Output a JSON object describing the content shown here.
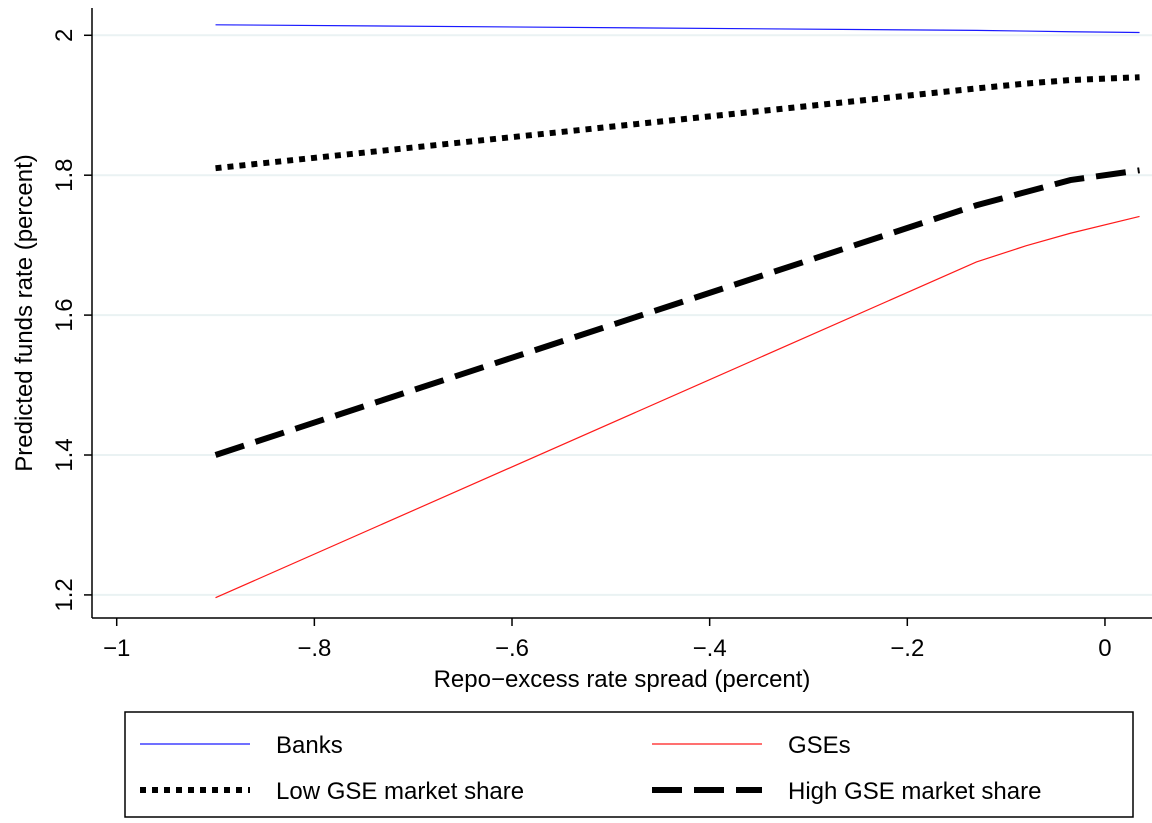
{
  "chart_data": {
    "type": "line",
    "xlabel": "Repo−excess rate spread (percent)",
    "ylabel": "Predicted funds rate (percent)",
    "x": [
      -0.9,
      -0.13,
      -0.08,
      -0.035,
      0.035
    ],
    "series": [
      {
        "name": "Banks",
        "color": "#1a1aff",
        "linestyle": "solid",
        "values": [
          2.015,
          2.007,
          2.006,
          2.005,
          2.004
        ]
      },
      {
        "name": "GSEs",
        "color": "#ff1a1a",
        "linestyle": "solid",
        "values": [
          1.196,
          1.676,
          1.699,
          1.717,
          1.741
        ]
      },
      {
        "name": "Low GSE market share",
        "color": "#000000",
        "linestyle": "dotted",
        "values": [
          1.81,
          1.924,
          1.931,
          1.936,
          1.94
        ]
      },
      {
        "name": "High GSE market share",
        "color": "#000000",
        "linestyle": "dashed",
        "values": [
          1.4,
          1.757,
          1.776,
          1.793,
          1.807
        ]
      }
    ],
    "xlim": [
      -1.025,
      0.0476
    ],
    "ylim": [
      1.167,
      2.039
    ],
    "xticks": [
      {
        "value": -1,
        "label": "−1"
      },
      {
        "value": -0.8,
        "label": "−.8"
      },
      {
        "value": -0.6,
        "label": "−.6"
      },
      {
        "value": -0.4,
        "label": "−.4"
      },
      {
        "value": -0.2,
        "label": "−.2"
      },
      0
    ],
    "yticks": [
      1.2,
      1.4,
      1.6,
      1.8,
      2
    ],
    "grid": true,
    "legend": "bottom"
  }
}
